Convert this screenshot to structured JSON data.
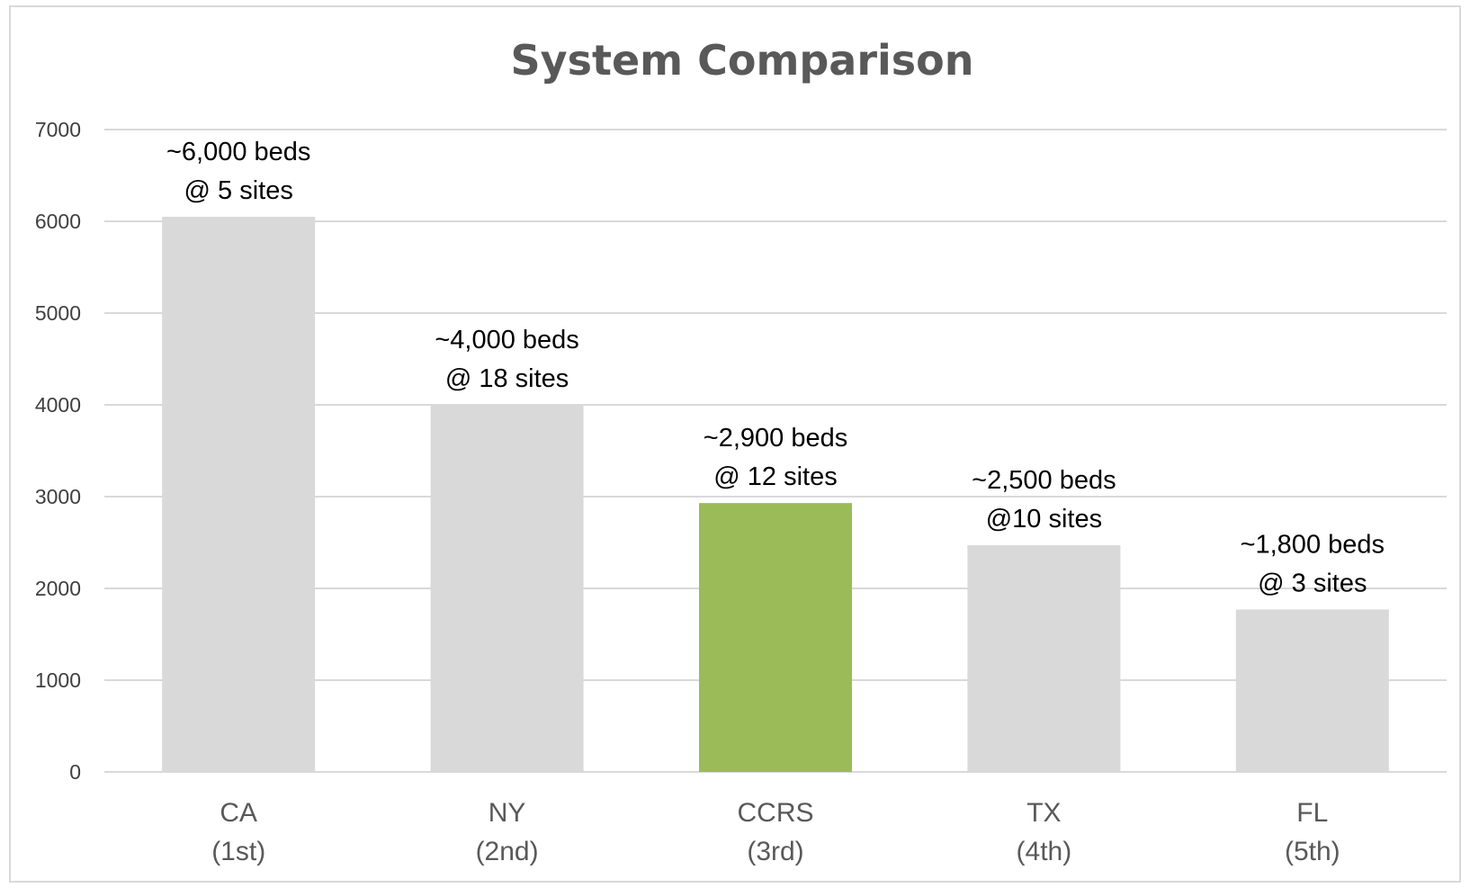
{
  "chart_data": {
    "type": "bar",
    "title": "System Comparison",
    "xlabel": "",
    "ylabel": "",
    "ylim": [
      0,
      7000
    ],
    "yticks": [
      0,
      1000,
      2000,
      3000,
      4000,
      5000,
      6000,
      7000
    ],
    "grid": true,
    "legend": "none",
    "categories": [
      {
        "name": "CA",
        "rank": "(1st)"
      },
      {
        "name": "NY",
        "rank": "(2nd)"
      },
      {
        "name": "CCRS",
        "rank": "(3rd)"
      },
      {
        "name": "TX",
        "rank": "(4th)"
      },
      {
        "name": "FL",
        "rank": "(5th)"
      }
    ],
    "values": [
      6050,
      4000,
      2930,
      2470,
      1770
    ],
    "data_labels": [
      [
        "~6,000 beds",
        "@ 5 sites"
      ],
      [
        "~4,000 beds",
        "@ 18 sites"
      ],
      [
        "~2,900 beds",
        "@ 12 sites"
      ],
      [
        "~2,500 beds",
        "@10 sites"
      ],
      [
        "~1,800 beds",
        "@ 3 sites"
      ]
    ],
    "colors": {
      "default_bar": "#d9d9d9",
      "highlight_bar": "#9bbb59",
      "highlight_index": 2
    }
  }
}
